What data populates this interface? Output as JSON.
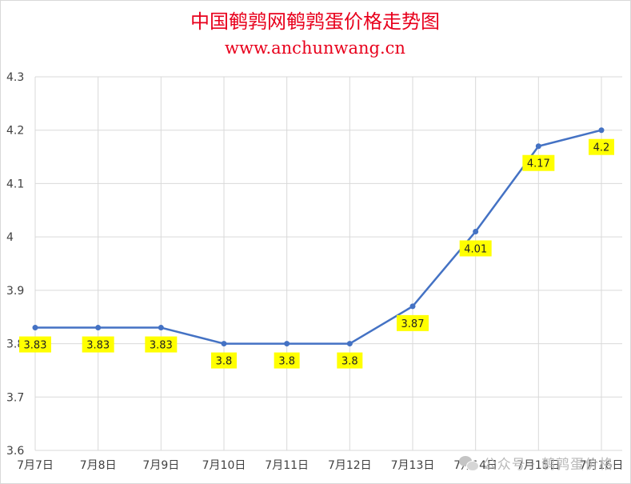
{
  "chart_data": {
    "type": "line",
    "title": "中国鹌鹑网鹌鹑蛋价格走势图",
    "subtitle": "www.anchunwang.cn",
    "categories": [
      "7月7日",
      "7月8日",
      "7月9日",
      "7月10日",
      "7月11日",
      "7月12日",
      "7月13日",
      "7月14日",
      "7月15日",
      "7月16日"
    ],
    "values": [
      3.83,
      3.83,
      3.83,
      3.8,
      3.8,
      3.8,
      3.87,
      4.01,
      4.17,
      4.2
    ],
    "data_labels": [
      "3.83",
      "3.83",
      "3.83",
      "3.8",
      "3.8",
      "3.8",
      "3.87",
      "4.01",
      "4.17",
      "4.2"
    ],
    "ylim": [
      3.6,
      4.3
    ],
    "yticks": [
      "3.6",
      "3.7",
      "3.8",
      "3.9",
      "4",
      "4.1",
      "4.2",
      "4.3"
    ],
    "grid": true,
    "line_color": "#4472c4",
    "label_background": "#ffff00",
    "title_color": "#e8001c"
  },
  "watermark": {
    "icon": "wechat-icon",
    "text": "公众号 · 鹌鹑蛋价格"
  }
}
